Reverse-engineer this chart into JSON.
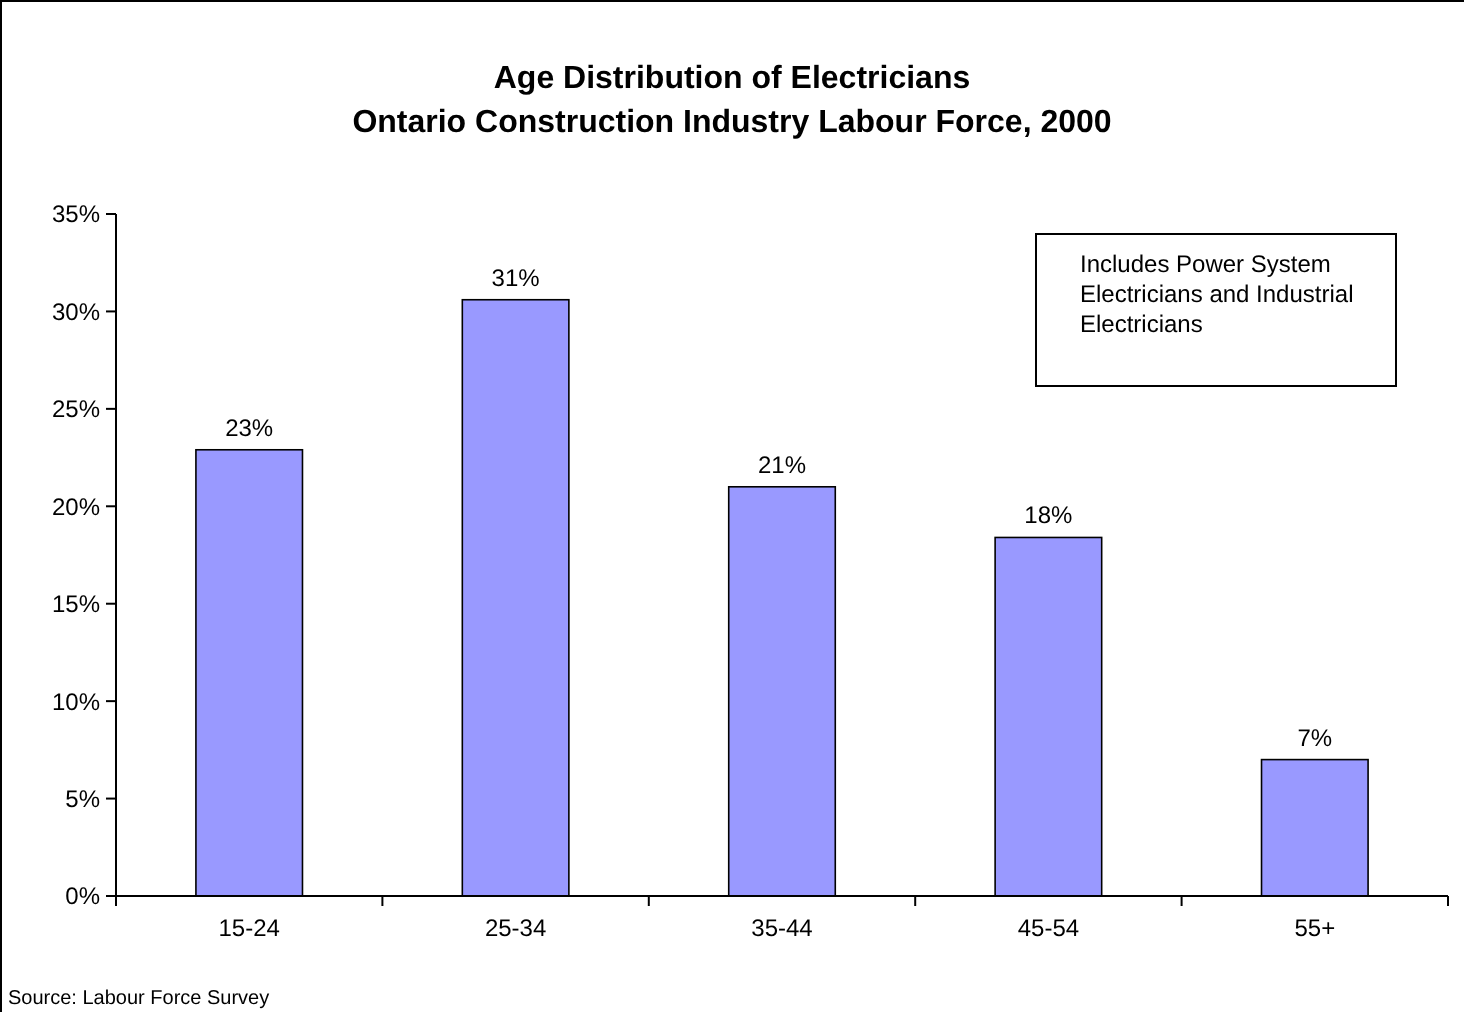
{
  "chart_data": {
    "type": "bar",
    "title": "Age Distribution of Electricians",
    "subtitle": "Ontario Construction Industry Labour Force, 2000",
    "categories": [
      "15-24",
      "25-34",
      "35-44",
      "45-54",
      "55+"
    ],
    "values": [
      22.9,
      30.6,
      21,
      18.4,
      7
    ],
    "value_labels": [
      "23%",
      "31%",
      "21%",
      "18%",
      "7%"
    ],
    "color": "#9999ff",
    "ylim": [
      0,
      35
    ],
    "yticks": [
      {
        "value": 0,
        "label": "0%"
      },
      {
        "value": 5,
        "label": "5%"
      },
      {
        "value": 10,
        "label": "10%"
      },
      {
        "value": 15,
        "label": "15%"
      },
      {
        "value": 20,
        "label": "20%"
      },
      {
        "value": 25,
        "label": "25%"
      },
      {
        "value": 30,
        "label": "30%"
      },
      {
        "value": 35,
        "label": "35%"
      }
    ],
    "grid": false,
    "annotations": [
      "Includes Power System Electricians and Industrial Electricians",
      "Source: Labour Force Survey"
    ]
  }
}
